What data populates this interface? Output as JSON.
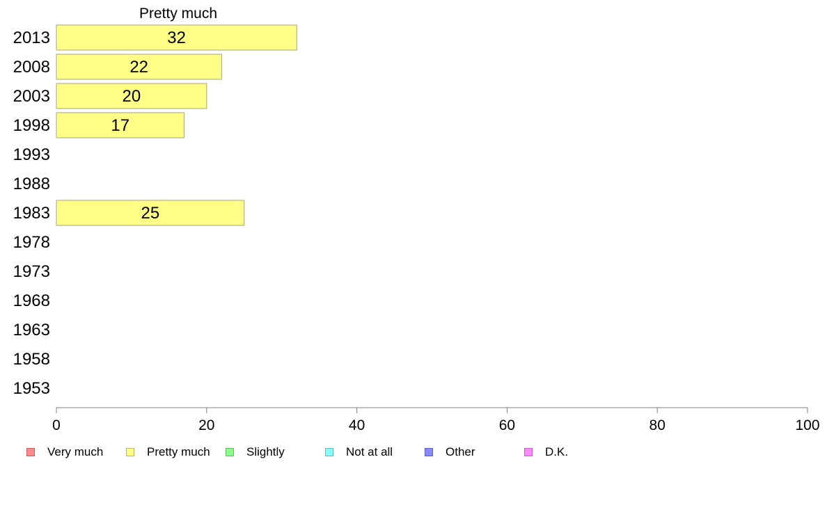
{
  "chart_data": {
    "type": "bar",
    "orientation": "horizontal",
    "title": "Pretty much",
    "categories": [
      "2013",
      "2008",
      "2003",
      "1998",
      "1993",
      "1988",
      "1983",
      "1978",
      "1973",
      "1968",
      "1963",
      "1958",
      "1953"
    ],
    "series": [
      {
        "name": "Pretty much",
        "color": "#ffff88",
        "values": [
          32,
          22,
          20,
          17,
          null,
          null,
          25,
          null,
          null,
          null,
          null,
          null,
          null
        ],
        "labels": [
          "32",
          "22",
          "20",
          "17",
          "",
          "",
          "25",
          "",
          "",
          "",
          "",
          "",
          ""
        ]
      }
    ],
    "xlim": [
      0,
      100
    ],
    "xticks": [
      "0",
      "20",
      "40",
      "60",
      "80",
      "100"
    ],
    "grid": false,
    "legend_position": "bottom"
  },
  "legend": [
    {
      "label": "Very much",
      "color": "#ff8888",
      "border": "#c06060"
    },
    {
      "label": "Pretty much",
      "color": "#ffff88",
      "border": "#b8b860"
    },
    {
      "label": "Slightly",
      "color": "#88ff88",
      "border": "#60b860"
    },
    {
      "label": "Not at all",
      "color": "#88ffff",
      "border": "#60b8b8"
    },
    {
      "label": "Other",
      "color": "#8888ff",
      "border": "#6060c0"
    },
    {
      "label": "D.K.",
      "color": "#ff88ff",
      "border": "#c060c0"
    }
  ]
}
